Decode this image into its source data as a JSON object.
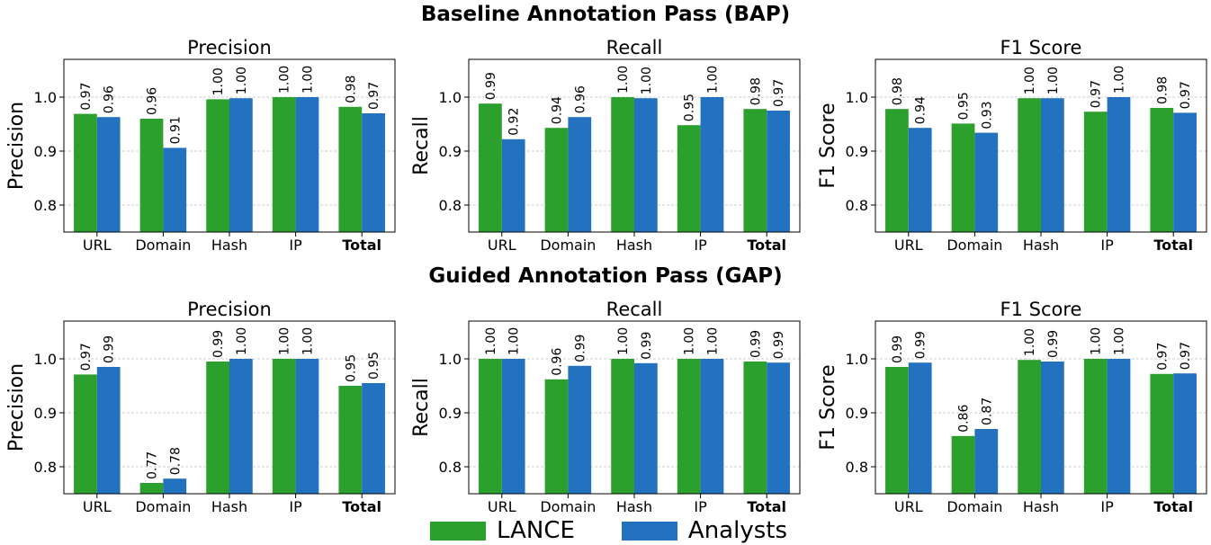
{
  "row_titles": [
    "Baseline Annotation Pass (BAP)",
    "Guided Annotation Pass (GAP)"
  ],
  "legend": [
    {
      "label": "LANCE",
      "color": "#2ca02c"
    },
    {
      "label": "Analysts",
      "color": "#2372c0"
    }
  ],
  "chart_data": [
    {
      "type": "bar",
      "title": "Precision",
      "ylabel": "Precision",
      "xlabel": "",
      "categories": [
        "URL",
        "Domain",
        "Hash",
        "IP",
        "Total"
      ],
      "bold_category": "Total",
      "ylim": [
        0.75,
        1.07
      ],
      "yticks": [
        0.8,
        0.9,
        1.0
      ],
      "grid": true,
      "series": [
        {
          "name": "LANCE",
          "color": "#2ca02c",
          "values": [
            0.969,
            0.96,
            0.996,
            1.0,
            0.982
          ],
          "labels": [
            "0.97",
            "0.96",
            "1.00",
            "1.00",
            "0.98"
          ]
        },
        {
          "name": "Analysts",
          "color": "#2372c0",
          "values": [
            0.963,
            0.906,
            0.998,
            1.0,
            0.97
          ],
          "labels": [
            "0.96",
            "0.91",
            "1.00",
            "1.00",
            "0.97"
          ]
        }
      ]
    },
    {
      "type": "bar",
      "title": "Recall",
      "ylabel": "Recall",
      "xlabel": "",
      "categories": [
        "URL",
        "Domain",
        "Hash",
        "IP",
        "Total"
      ],
      "bold_category": "Total",
      "ylim": [
        0.75,
        1.07
      ],
      "yticks": [
        0.8,
        0.9,
        1.0
      ],
      "grid": true,
      "series": [
        {
          "name": "LANCE",
          "color": "#2ca02c",
          "values": [
            0.988,
            0.943,
            1.0,
            0.948,
            0.978
          ],
          "labels": [
            "0.99",
            "0.94",
            "1.00",
            "0.95",
            "0.98"
          ]
        },
        {
          "name": "Analysts",
          "color": "#2372c0",
          "values": [
            0.922,
            0.963,
            0.998,
            1.0,
            0.975
          ],
          "labels": [
            "0.92",
            "0.96",
            "1.00",
            "1.00",
            "0.97"
          ]
        }
      ]
    },
    {
      "type": "bar",
      "title": "F1 Score",
      "ylabel": "F1 Score",
      "xlabel": "",
      "categories": [
        "URL",
        "Domain",
        "Hash",
        "IP",
        "Total"
      ],
      "bold_category": "Total",
      "ylim": [
        0.75,
        1.07
      ],
      "yticks": [
        0.8,
        0.9,
        1.0
      ],
      "grid": true,
      "series": [
        {
          "name": "LANCE",
          "color": "#2ca02c",
          "values": [
            0.978,
            0.951,
            0.998,
            0.973,
            0.98
          ],
          "labels": [
            "0.98",
            "0.95",
            "1.00",
            "0.97",
            "0.98"
          ]
        },
        {
          "name": "Analysts",
          "color": "#2372c0",
          "values": [
            0.943,
            0.934,
            0.998,
            1.0,
            0.971
          ],
          "labels": [
            "0.94",
            "0.93",
            "1.00",
            "1.00",
            "0.97"
          ]
        }
      ]
    },
    {
      "type": "bar",
      "title": "Precision",
      "ylabel": "Precision",
      "xlabel": "",
      "categories": [
        "URL",
        "Domain",
        "Hash",
        "IP",
        "Total"
      ],
      "bold_category": "Total",
      "ylim": [
        0.75,
        1.07
      ],
      "yticks": [
        0.8,
        0.9,
        1.0
      ],
      "grid": true,
      "series": [
        {
          "name": "LANCE",
          "color": "#2ca02c",
          "values": [
            0.971,
            0.77,
            0.995,
            1.0,
            0.95
          ],
          "labels": [
            "0.97",
            "0.77",
            "0.99",
            "1.00",
            "0.95"
          ]
        },
        {
          "name": "Analysts",
          "color": "#2372c0",
          "values": [
            0.985,
            0.778,
            1.0,
            1.0,
            0.955
          ],
          "labels": [
            "0.99",
            "0.78",
            "1.00",
            "1.00",
            "0.95"
          ]
        }
      ]
    },
    {
      "type": "bar",
      "title": "Recall",
      "ylabel": "Recall",
      "xlabel": "",
      "categories": [
        "URL",
        "Domain",
        "Hash",
        "IP",
        "Total"
      ],
      "bold_category": "Total",
      "ylim": [
        0.75,
        1.07
      ],
      "yticks": [
        0.8,
        0.9,
        1.0
      ],
      "grid": true,
      "series": [
        {
          "name": "LANCE",
          "color": "#2ca02c",
          "values": [
            1.0,
            0.962,
            1.0,
            1.0,
            0.995
          ],
          "labels": [
            "1.00",
            "0.96",
            "1.00",
            "1.00",
            "0.99"
          ]
        },
        {
          "name": "Analysts",
          "color": "#2372c0",
          "values": [
            1.0,
            0.987,
            0.992,
            1.0,
            0.993
          ],
          "labels": [
            "1.00",
            "0.99",
            "0.99",
            "1.00",
            "0.99"
          ]
        }
      ]
    },
    {
      "type": "bar",
      "title": "F1 Score",
      "ylabel": "F1 Score",
      "xlabel": "",
      "categories": [
        "URL",
        "Domain",
        "Hash",
        "IP",
        "Total"
      ],
      "bold_category": "Total",
      "ylim": [
        0.75,
        1.07
      ],
      "yticks": [
        0.8,
        0.9,
        1.0
      ],
      "grid": true,
      "series": [
        {
          "name": "LANCE",
          "color": "#2ca02c",
          "values": [
            0.985,
            0.857,
            0.998,
            1.0,
            0.972
          ],
          "labels": [
            "0.99",
            "0.86",
            "1.00",
            "1.00",
            "0.97"
          ]
        },
        {
          "name": "Analysts",
          "color": "#2372c0",
          "values": [
            0.993,
            0.87,
            0.995,
            1.0,
            0.973
          ],
          "labels": [
            "0.99",
            "0.87",
            "0.99",
            "1.00",
            "0.97"
          ]
        }
      ]
    }
  ]
}
